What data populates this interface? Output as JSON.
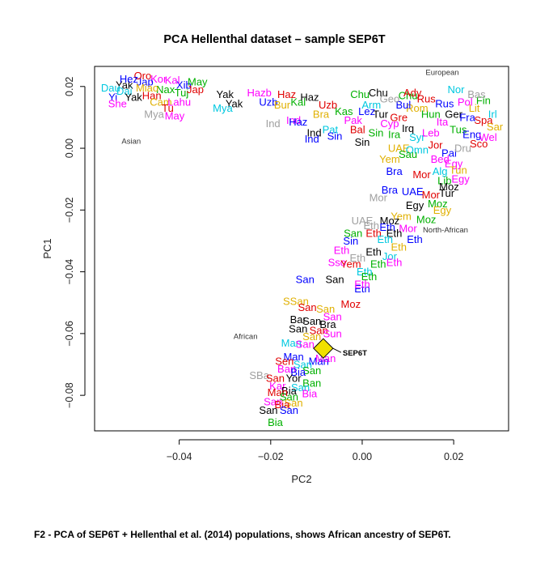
{
  "caption": "F2 - PCA of SEP6T + Hellenthal et al. (2014) populations, shows African ancestry of SEP6T.",
  "chart_data": {
    "type": "scatter",
    "title": "PCA Hellenthal dataset – sample SEP6T",
    "xlabel": "PC2",
    "ylabel": "PC1",
    "xlim": [
      -0.0585,
      0.032
    ],
    "ylim": [
      -0.0915,
      0.0265
    ],
    "xticks": [
      -0.04,
      -0.02,
      0.0,
      0.02
    ],
    "xtick_labels": [
      "−0.04",
      "−0.02",
      "0.00",
      "0.02"
    ],
    "yticks": [
      0.02,
      0.0,
      -0.02,
      -0.04,
      -0.06,
      -0.08
    ],
    "ytick_labels": [
      "0.02",
      "0.00",
      "−0.02",
      "−0.04",
      "−0.06",
      "−0.08"
    ],
    "grid": false,
    "regions": [
      {
        "label": "European",
        "x": 0.0175,
        "y": 0.0237
      },
      {
        "label": "Asian",
        "x": -0.0505,
        "y": 0.0015
      },
      {
        "label": "North-African",
        "x": 0.0182,
        "y": -0.0272
      },
      {
        "label": "African",
        "x": -0.0255,
        "y": -0.0618
      }
    ],
    "highlight": {
      "label": "SEP6T",
      "x": -0.0085,
      "y": -0.0648,
      "color": "#f0e000"
    },
    "colors": [
      "#000000",
      "#e00000",
      "#00b000",
      "#0000ff",
      "#00c8e0",
      "#ff00ff",
      "#e0b000",
      "#a0a0a0"
    ],
    "points": [
      {
        "l": "Yak",
        "x": -0.052,
        "y": 0.0205,
        "c": 0
      },
      {
        "l": "Kor",
        "x": -0.0445,
        "y": 0.0225,
        "c": 5
      },
      {
        "l": "Jap",
        "x": -0.0475,
        "y": 0.0215,
        "c": 3
      },
      {
        "l": "Han",
        "x": -0.046,
        "y": 0.017,
        "c": 1
      },
      {
        "l": "Dai",
        "x": -0.052,
        "y": 0.0185,
        "c": 4
      },
      {
        "l": "Yi",
        "x": -0.0545,
        "y": 0.0165,
        "c": 3
      },
      {
        "l": "Yak",
        "x": -0.05,
        "y": 0.0165,
        "c": 0
      },
      {
        "l": "She",
        "x": -0.0535,
        "y": 0.0145,
        "c": 5
      },
      {
        "l": "Cam",
        "x": -0.044,
        "y": 0.015,
        "c": 6
      },
      {
        "l": "Mya",
        "x": -0.0455,
        "y": 0.011,
        "c": 7
      },
      {
        "l": "May",
        "x": -0.041,
        "y": 0.0105,
        "c": 5
      },
      {
        "l": "Nax",
        "x": -0.043,
        "y": 0.019,
        "c": 2
      },
      {
        "l": "Tuj",
        "x": -0.0395,
        "y": 0.018,
        "c": 2
      },
      {
        "l": "Oro",
        "x": -0.048,
        "y": 0.0235,
        "c": 1
      },
      {
        "l": "Hez",
        "x": -0.051,
        "y": 0.0225,
        "c": 3
      },
      {
        "l": "Tu",
        "x": -0.0425,
        "y": 0.013,
        "c": 1
      },
      {
        "l": "Miao",
        "x": -0.047,
        "y": 0.0195,
        "c": 6
      },
      {
        "l": "Lahu",
        "x": -0.04,
        "y": 0.015,
        "c": 5
      },
      {
        "l": "Dau",
        "x": -0.055,
        "y": 0.0195,
        "c": 4
      },
      {
        "l": "Xib",
        "x": -0.039,
        "y": 0.0205,
        "c": 3
      },
      {
        "l": "Kal",
        "x": -0.0415,
        "y": 0.022,
        "c": 5
      },
      {
        "l": "Jap",
        "x": -0.0365,
        "y": 0.019,
        "c": 1
      },
      {
        "l": "May",
        "x": -0.036,
        "y": 0.0215,
        "c": 2
      },
      {
        "l": "Yak",
        "x": -0.03,
        "y": 0.0175,
        "c": 0
      },
      {
        "l": "Yak",
        "x": -0.028,
        "y": 0.0145,
        "c": 0
      },
      {
        "l": "Mya",
        "x": -0.0305,
        "y": 0.013,
        "c": 4
      },
      {
        "l": "Hazb",
        "x": -0.0225,
        "y": 0.018,
        "c": 5
      },
      {
        "l": "Haz",
        "x": -0.0165,
        "y": 0.0175,
        "c": 1
      },
      {
        "l": "Haz",
        "x": -0.0115,
        "y": 0.0165,
        "c": 0
      },
      {
        "l": "Uzb",
        "x": -0.0205,
        "y": 0.015,
        "c": 3
      },
      {
        "l": "Bur",
        "x": -0.0175,
        "y": 0.014,
        "c": 6
      },
      {
        "l": "Kal",
        "x": -0.014,
        "y": 0.015,
        "c": 2
      },
      {
        "l": "Uzb",
        "x": -0.0075,
        "y": 0.014,
        "c": 1
      },
      {
        "l": "Ind",
        "x": -0.015,
        "y": 0.009,
        "c": 5
      },
      {
        "l": "Ind",
        "x": -0.0195,
        "y": 0.008,
        "c": 7
      },
      {
        "l": "Ind",
        "x": -0.0105,
        "y": 0.005,
        "c": 0
      },
      {
        "l": "Ind",
        "x": -0.011,
        "y": 0.003,
        "c": 3
      },
      {
        "l": "Haz",
        "x": -0.014,
        "y": 0.0085,
        "c": 3
      },
      {
        "l": "Bra",
        "x": -0.009,
        "y": 0.011,
        "c": 6
      },
      {
        "l": "Pat",
        "x": -0.007,
        "y": 0.006,
        "c": 4
      },
      {
        "l": "Sin",
        "x": -0.006,
        "y": 0.004,
        "c": 3
      },
      {
        "l": "Pak",
        "x": -0.002,
        "y": 0.009,
        "c": 5
      },
      {
        "l": "Kas",
        "x": -0.004,
        "y": 0.012,
        "c": 2
      },
      {
        "l": "Bal",
        "x": -0.001,
        "y": 0.006,
        "c": 1
      },
      {
        "l": "Chu",
        "x": 0.0035,
        "y": 0.018,
        "c": 0
      },
      {
        "l": "Chu",
        "x": -0.0005,
        "y": 0.0175,
        "c": 2
      },
      {
        "l": "Chu",
        "x": 0.01,
        "y": 0.017,
        "c": 2
      },
      {
        "l": "Nor",
        "x": 0.0205,
        "y": 0.019,
        "c": 4
      },
      {
        "l": "Rus",
        "x": 0.014,
        "y": 0.016,
        "c": 1
      },
      {
        "l": "Rus",
        "x": 0.018,
        "y": 0.0145,
        "c": 3
      },
      {
        "l": "Pol",
        "x": 0.0225,
        "y": 0.015,
        "c": 5
      },
      {
        "l": "Fin",
        "x": 0.0265,
        "y": 0.0155,
        "c": 2
      },
      {
        "l": "Lit",
        "x": 0.0245,
        "y": 0.013,
        "c": 6
      },
      {
        "l": "Bas",
        "x": 0.025,
        "y": 0.0175,
        "c": 7
      },
      {
        "l": "Ger",
        "x": 0.02,
        "y": 0.011,
        "c": 0
      },
      {
        "l": "Fra",
        "x": 0.023,
        "y": 0.01,
        "c": 3
      },
      {
        "l": "Ita",
        "x": 0.0175,
        "y": 0.0085,
        "c": 5
      },
      {
        "l": "Spa",
        "x": 0.0265,
        "y": 0.009,
        "c": 1
      },
      {
        "l": "Irl",
        "x": 0.0285,
        "y": 0.011,
        "c": 4
      },
      {
        "l": "Hun",
        "x": 0.015,
        "y": 0.011,
        "c": 2
      },
      {
        "l": "Rom",
        "x": 0.012,
        "y": 0.013,
        "c": 6
      },
      {
        "l": "Bul",
        "x": 0.009,
        "y": 0.014,
        "c": 3
      },
      {
        "l": "Gre",
        "x": 0.008,
        "y": 0.01,
        "c": 1
      },
      {
        "l": "Cyp",
        "x": 0.006,
        "y": 0.008,
        "c": 5
      },
      {
        "l": "Tur",
        "x": 0.004,
        "y": 0.011,
        "c": 0
      },
      {
        "l": "Arm",
        "x": 0.002,
        "y": 0.014,
        "c": 4
      },
      {
        "l": "Geo",
        "x": 0.006,
        "y": 0.016,
        "c": 7
      },
      {
        "l": "Lez",
        "x": 0.001,
        "y": 0.012,
        "c": 3
      },
      {
        "l": "Ady",
        "x": 0.011,
        "y": 0.018,
        "c": 1
      },
      {
        "l": "Sar",
        "x": 0.029,
        "y": 0.007,
        "c": 6
      },
      {
        "l": "Tus",
        "x": 0.021,
        "y": 0.006,
        "c": 2
      },
      {
        "l": "Eng",
        "x": 0.024,
        "y": 0.0045,
        "c": 3
      },
      {
        "l": "Wel",
        "x": 0.0275,
        "y": 0.0035,
        "c": 5
      },
      {
        "l": "Sco",
        "x": 0.0255,
        "y": 0.0015,
        "c": 1
      },
      {
        "l": "Irq",
        "x": 0.01,
        "y": 0.0065,
        "c": 0
      },
      {
        "l": "Ira",
        "x": 0.007,
        "y": 0.0045,
        "c": 2
      },
      {
        "l": "Syr",
        "x": 0.012,
        "y": 0.0035,
        "c": 4
      },
      {
        "l": "Leb",
        "x": 0.015,
        "y": 0.005,
        "c": 5
      },
      {
        "l": "Sin",
        "x": 0.003,
        "y": 0.005,
        "c": 2
      },
      {
        "l": "Sin",
        "x": 0.0,
        "y": 0.002,
        "c": 0
      },
      {
        "l": "UAE",
        "x": 0.008,
        "y": 0.0,
        "c": 6
      },
      {
        "l": "Omn",
        "x": 0.012,
        "y": -0.0005,
        "c": 4
      },
      {
        "l": "Jor",
        "x": 0.016,
        "y": 0.001,
        "c": 1
      },
      {
        "l": "Pal",
        "x": 0.019,
        "y": -0.0015,
        "c": 3
      },
      {
        "l": "Dru",
        "x": 0.022,
        "y": 0.0,
        "c": 7
      },
      {
        "l": "Bed",
        "x": 0.017,
        "y": -0.0035,
        "c": 5
      },
      {
        "l": "Yem",
        "x": 0.006,
        "y": -0.0035,
        "c": 6
      },
      {
        "l": "Sau",
        "x": 0.01,
        "y": -0.002,
        "c": 2
      },
      {
        "l": "Egy",
        "x": 0.02,
        "y": -0.005,
        "c": 5
      },
      {
        "l": "Bra",
        "x": 0.007,
        "y": -0.0075,
        "c": 3
      },
      {
        "l": "Mor",
        "x": 0.013,
        "y": -0.0085,
        "c": 1
      },
      {
        "l": "Alg",
        "x": 0.017,
        "y": -0.0075,
        "c": 4
      },
      {
        "l": "Tun",
        "x": 0.021,
        "y": -0.007,
        "c": 6
      },
      {
        "l": "Lib",
        "x": 0.018,
        "y": -0.0105,
        "c": 2
      },
      {
        "l": "Egy",
        "x": 0.0215,
        "y": -0.01,
        "c": 5
      },
      {
        "l": "Moz",
        "x": 0.019,
        "y": -0.0125,
        "c": 0
      },
      {
        "l": "UAE",
        "x": 0.011,
        "y": -0.014,
        "c": 3
      },
      {
        "l": "Mor",
        "x": 0.015,
        "y": -0.015,
        "c": 1
      },
      {
        "l": "Bra",
        "x": 0.006,
        "y": -0.0135,
        "c": 3
      },
      {
        "l": "Mor",
        "x": 0.0035,
        "y": -0.016,
        "c": 7
      },
      {
        "l": "Tur",
        "x": 0.0185,
        "y": -0.0145,
        "c": 0
      },
      {
        "l": "Egy",
        "x": 0.0115,
        "y": -0.0185,
        "c": 0
      },
      {
        "l": "Moz",
        "x": 0.0165,
        "y": -0.018,
        "c": 2
      },
      {
        "l": "Egy",
        "x": 0.0175,
        "y": -0.02,
        "c": 6
      },
      {
        "l": "Yem",
        "x": 0.0085,
        "y": -0.022,
        "c": 6
      },
      {
        "l": "Moz",
        "x": 0.006,
        "y": -0.0235,
        "c": 0
      },
      {
        "l": "Moz",
        "x": 0.014,
        "y": -0.023,
        "c": 2
      },
      {
        "l": "UAE",
        "x": 0.0,
        "y": -0.0235,
        "c": 7
      },
      {
        "l": "Eth",
        "x": 0.002,
        "y": -0.025,
        "c": 7
      },
      {
        "l": "Eth",
        "x": 0.0055,
        "y": -0.0255,
        "c": 3
      },
      {
        "l": "Mor",
        "x": 0.01,
        "y": -0.026,
        "c": 5
      },
      {
        "l": "San",
        "x": -0.002,
        "y": -0.0275,
        "c": 2
      },
      {
        "l": "Eth",
        "x": 0.0025,
        "y": -0.0275,
        "c": 1
      },
      {
        "l": "Eth",
        "x": 0.007,
        "y": -0.0275,
        "c": 0
      },
      {
        "l": "Eth",
        "x": 0.0115,
        "y": -0.0295,
        "c": 3
      },
      {
        "l": "Sin",
        "x": -0.0025,
        "y": -0.03,
        "c": 3
      },
      {
        "l": "Eth",
        "x": 0.005,
        "y": -0.0295,
        "c": 4
      },
      {
        "l": "Eth",
        "x": 0.008,
        "y": -0.032,
        "c": 6
      },
      {
        "l": "Eth",
        "x": -0.0045,
        "y": -0.033,
        "c": 5
      },
      {
        "l": "Eth",
        "x": 0.0025,
        "y": -0.0335,
        "c": 0
      },
      {
        "l": "Jor",
        "x": 0.006,
        "y": -0.035,
        "c": 4
      },
      {
        "l": "Eth",
        "x": -0.001,
        "y": -0.0355,
        "c": 7
      },
      {
        "l": "Sso",
        "x": -0.0055,
        "y": -0.037,
        "c": 5
      },
      {
        "l": "Yem",
        "x": -0.0025,
        "y": -0.0375,
        "c": 1
      },
      {
        "l": "Eth",
        "x": 0.0035,
        "y": -0.0375,
        "c": 2
      },
      {
        "l": "Eth",
        "x": 0.007,
        "y": -0.037,
        "c": 5
      },
      {
        "l": "Eth",
        "x": 0.0005,
        "y": -0.04,
        "c": 4
      },
      {
        "l": "Eth",
        "x": 0.0015,
        "y": -0.0415,
        "c": 2
      },
      {
        "l": "San",
        "x": -0.0125,
        "y": -0.0425,
        "c": 3
      },
      {
        "l": "San",
        "x": -0.006,
        "y": -0.0425,
        "c": 0
      },
      {
        "l": "Eth",
        "x": 0.0,
        "y": -0.0455,
        "c": 3
      },
      {
        "l": "Eth",
        "x": 0.0,
        "y": -0.044,
        "c": 5
      },
      {
        "l": "SSan",
        "x": -0.0145,
        "y": -0.0495,
        "c": 6
      },
      {
        "l": "Moz",
        "x": -0.0025,
        "y": -0.0505,
        "c": 1
      },
      {
        "l": "San",
        "x": -0.012,
        "y": -0.0515,
        "c": 1
      },
      {
        "l": "San",
        "x": -0.008,
        "y": -0.052,
        "c": 6
      },
      {
        "l": "San",
        "x": -0.0065,
        "y": -0.0545,
        "c": 5
      },
      {
        "l": "Bar",
        "x": -0.014,
        "y": -0.0555,
        "c": 0
      },
      {
        "l": "San",
        "x": -0.011,
        "y": -0.056,
        "c": 0
      },
      {
        "l": "Bra",
        "x": -0.0075,
        "y": -0.057,
        "c": 0
      },
      {
        "l": "San",
        "x": -0.0095,
        "y": -0.059,
        "c": 1
      },
      {
        "l": "San",
        "x": -0.014,
        "y": -0.0585,
        "c": 0
      },
      {
        "l": "Sun",
        "x": -0.0065,
        "y": -0.06,
        "c": 5
      },
      {
        "l": "San",
        "x": -0.011,
        "y": -0.061,
        "c": 6
      },
      {
        "l": "Man",
        "x": -0.0155,
        "y": -0.063,
        "c": 4
      },
      {
        "l": "San",
        "x": -0.0125,
        "y": -0.0635,
        "c": 5
      },
      {
        "l": "Man",
        "x": -0.015,
        "y": -0.0675,
        "c": 3
      },
      {
        "l": "Man",
        "x": -0.0095,
        "y": -0.069,
        "c": 3
      },
      {
        "l": "Man",
        "x": -0.008,
        "y": -0.068,
        "c": 5
      },
      {
        "l": "Sen",
        "x": -0.017,
        "y": -0.069,
        "c": 1
      },
      {
        "l": "San",
        "x": -0.013,
        "y": -0.07,
        "c": 4
      },
      {
        "l": "Ban",
        "x": -0.0165,
        "y": -0.0715,
        "c": 5
      },
      {
        "l": "San",
        "x": -0.011,
        "y": -0.072,
        "c": 2
      },
      {
        "l": "Bia",
        "x": -0.014,
        "y": -0.0725,
        "c": 3
      },
      {
        "l": "SBa",
        "x": -0.0225,
        "y": -0.0735,
        "c": 7
      },
      {
        "l": "San",
        "x": -0.019,
        "y": -0.0745,
        "c": 1
      },
      {
        "l": "Yor",
        "x": -0.015,
        "y": -0.0745,
        "c": 0
      },
      {
        "l": "Ban",
        "x": -0.011,
        "y": -0.076,
        "c": 2
      },
      {
        "l": "Kar",
        "x": -0.0185,
        "y": -0.077,
        "c": 5
      },
      {
        "l": "San",
        "x": -0.0135,
        "y": -0.0775,
        "c": 4
      },
      {
        "l": "Bia",
        "x": -0.016,
        "y": -0.0785,
        "c": 0
      },
      {
        "l": "Man",
        "x": -0.0185,
        "y": -0.079,
        "c": 1
      },
      {
        "l": "Bia",
        "x": -0.0115,
        "y": -0.0795,
        "c": 5
      },
      {
        "l": "San",
        "x": -0.016,
        "y": -0.0805,
        "c": 2
      },
      {
        "l": "San",
        "x": -0.0195,
        "y": -0.082,
        "c": 5
      },
      {
        "l": "San",
        "x": -0.015,
        "y": -0.0825,
        "c": 6
      },
      {
        "l": "Bia",
        "x": -0.0175,
        "y": -0.083,
        "c": 1
      },
      {
        "l": "San",
        "x": -0.0205,
        "y": -0.0848,
        "c": 0
      },
      {
        "l": "San",
        "x": -0.016,
        "y": -0.0848,
        "c": 3
      },
      {
        "l": "Bia",
        "x": -0.019,
        "y": -0.0888,
        "c": 2
      }
    ]
  }
}
